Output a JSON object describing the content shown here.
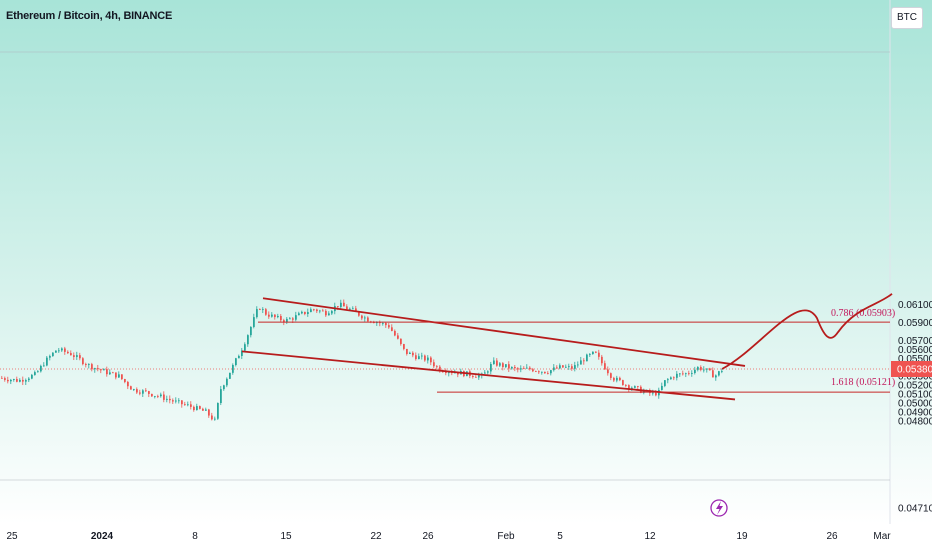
{
  "header": {
    "title": "Ethereum / Bitcoin, 4h, BINANCE",
    "currency_button": "BTC"
  },
  "colors": {
    "up": "#26a69a",
    "down": "#ef5350",
    "drawing": "#b71c1c",
    "fib": "#c62828",
    "last_price_bg": "#ef5350",
    "bg_top": "#b2e6dc",
    "bg_bottom": "#ffffff"
  },
  "chart_data": {
    "type": "candlestick",
    "symbol": "Ethereum / Bitcoin",
    "interval": "4h",
    "exchange": "BINANCE",
    "y_ticks": [
      "0.06100",
      "0.05900",
      "0.05700",
      "0.05600",
      "0.05500",
      "0.05300",
      "0.05200",
      "0.05100",
      "0.05000",
      "0.04900",
      "0.04800",
      "0.04710"
    ],
    "x_ticks": [
      "25",
      "2024",
      "8",
      "15",
      "22",
      "26",
      "Feb",
      "5",
      "12",
      "19",
      "26",
      "Mar"
    ],
    "last_price": "0.05380",
    "price_path": [
      [
        0,
        0.0528
      ],
      [
        18,
        0.0525
      ],
      [
        35,
        0.0532
      ],
      [
        44,
        0.0546
      ],
      [
        56,
        0.056
      ],
      [
        70,
        0.0555
      ],
      [
        88,
        0.0542
      ],
      [
        104,
        0.0535
      ],
      [
        118,
        0.053
      ],
      [
        132,
        0.0515
      ],
      [
        145,
        0.0512
      ],
      [
        160,
        0.0507
      ],
      [
        175,
        0.0501
      ],
      [
        190,
        0.0496
      ],
      [
        205,
        0.049
      ],
      [
        214,
        0.048
      ],
      [
        220,
        0.0516
      ],
      [
        232,
        0.0541
      ],
      [
        242,
        0.0563
      ],
      [
        250,
        0.0585
      ],
      [
        258,
        0.0608
      ],
      [
        265,
        0.06
      ],
      [
        275,
        0.0595
      ],
      [
        285,
        0.0592
      ],
      [
        298,
        0.0598
      ],
      [
        312,
        0.0605
      ],
      [
        325,
        0.0601
      ],
      [
        338,
        0.061
      ],
      [
        352,
        0.0603
      ],
      [
        366,
        0.0594
      ],
      [
        378,
        0.059
      ],
      [
        388,
        0.0586
      ],
      [
        396,
        0.0572
      ],
      [
        404,
        0.0557
      ],
      [
        415,
        0.0552
      ],
      [
        428,
        0.0548
      ],
      [
        438,
        0.0538
      ],
      [
        452,
        0.0535
      ],
      [
        468,
        0.0532
      ],
      [
        482,
        0.053
      ],
      [
        492,
        0.0545
      ],
      [
        504,
        0.0541
      ],
      [
        516,
        0.0537
      ],
      [
        530,
        0.0538
      ],
      [
        545,
        0.0535
      ],
      [
        560,
        0.054
      ],
      [
        572,
        0.0539
      ],
      [
        584,
        0.055
      ],
      [
        594,
        0.0556
      ],
      [
        602,
        0.0543
      ],
      [
        612,
        0.0528
      ],
      [
        626,
        0.052
      ],
      [
        640,
        0.0514
      ],
      [
        652,
        0.051
      ],
      [
        658,
        0.0512
      ],
      [
        664,
        0.0524
      ],
      [
        674,
        0.0531
      ],
      [
        686,
        0.0533
      ],
      [
        698,
        0.054
      ],
      [
        706,
        0.0536
      ],
      [
        714,
        0.053
      ],
      [
        722,
        0.0538
      ]
    ],
    "drawings": {
      "upper_channel_line": {
        "from": [
          263,
          0.0617
        ],
        "to": [
          745,
          0.05414
        ]
      },
      "lower_channel_line": {
        "from": [
          242,
          0.05577
        ],
        "to": [
          735,
          0.0504
        ]
      },
      "projection_curve": "rise from last price to the 0.786 level, pull back, then continue higher",
      "levels": [
        {
          "label": "0.786 (0.05903)",
          "value": 0.05903
        },
        {
          "label": "1.618 (0.05121)",
          "value": 0.05121
        }
      ]
    }
  }
}
